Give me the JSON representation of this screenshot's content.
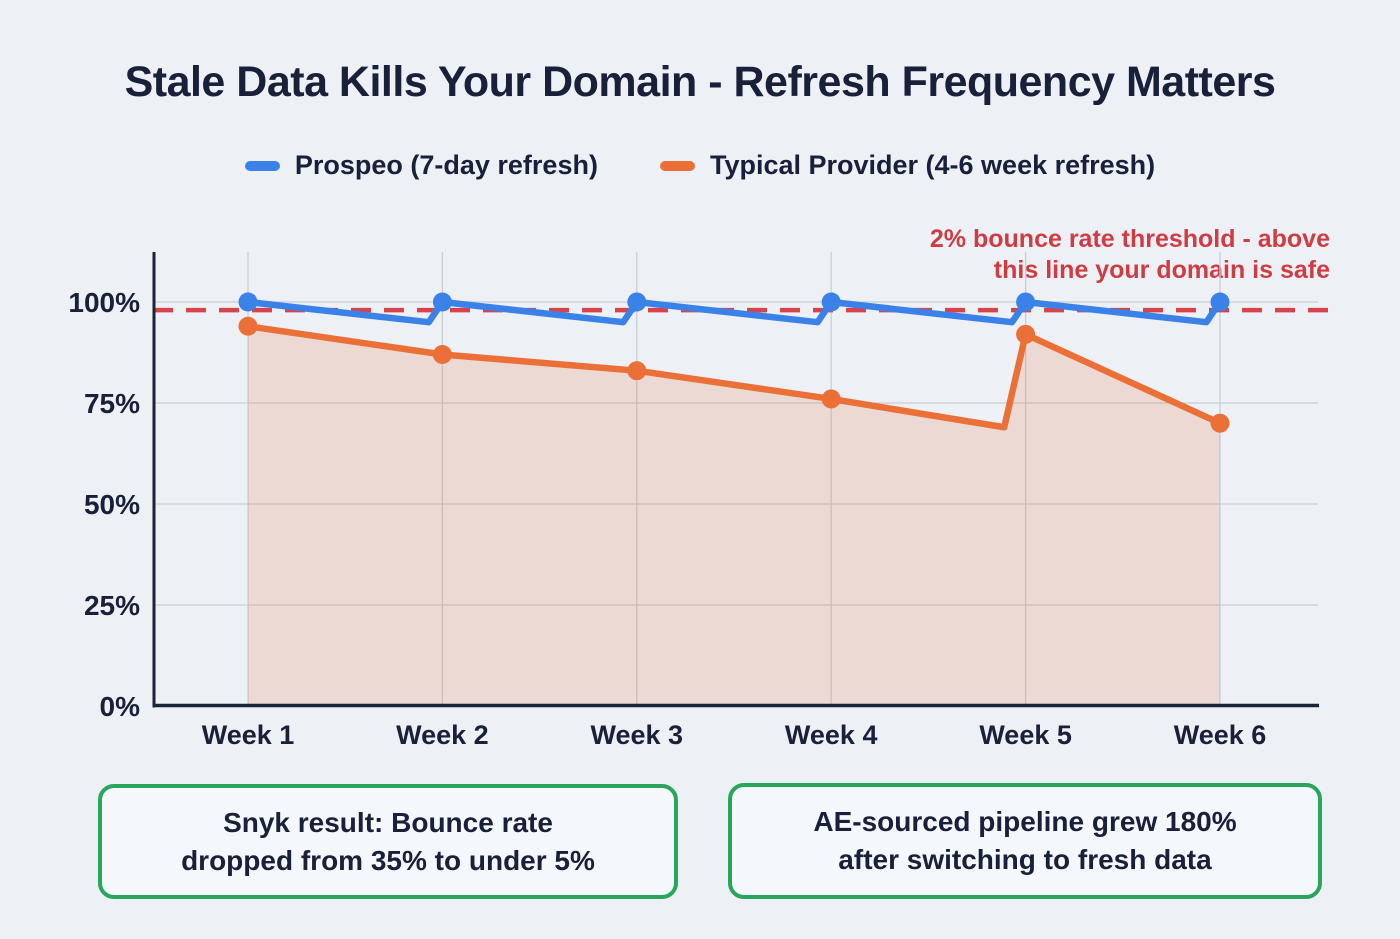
{
  "header": {
    "title": "Stale Data Kills Your Domain - Refresh Frequency Matters"
  },
  "legend": [
    {
      "label": "Prospeo (7-day refresh)",
      "color": "#3b82e8"
    },
    {
      "label": "Typical Provider (4-6 week refresh)",
      "color": "#eb7038"
    }
  ],
  "threshold_note": {
    "line1": "2% bounce rate threshold - above",
    "line2": "this line your domain is safe"
  },
  "callouts": [
    {
      "line1": "Snyk result: Bounce rate",
      "line2": "dropped from 35% to under 5%"
    },
    {
      "line1": "AE-sourced pipeline grew 180%",
      "line2": "after switching to fresh data"
    }
  ],
  "chart_data": {
    "type": "line",
    "title": "Stale Data Kills Your Domain - Refresh Frequency Matters",
    "x_labels": [
      "Week 1",
      "Week 2",
      "Week 3",
      "Week 4",
      "Week 5",
      "Week 6"
    ],
    "y_ticks": [
      0,
      25,
      50,
      75,
      100
    ],
    "y_tick_suffix": "%",
    "ylim": [
      0,
      112
    ],
    "grid": true,
    "legend_position": "top",
    "threshold": {
      "value": 98,
      "color": "#d8434a",
      "style": "dashed",
      "label": "2% bounce rate threshold - above this line your domain is safe"
    },
    "series": [
      {
        "name": "Prospeo (7-day refresh)",
        "color": "#3b82e8",
        "pattern": "sawtooth (refreshes back to 100% every week, dips to ~95% between refreshes)",
        "weekly_values": [
          100,
          100,
          100,
          100,
          100,
          100
        ],
        "dip_value": 95,
        "points": [
          [
            1,
            100
          ],
          [
            1.93,
            95
          ],
          [
            2,
            100
          ],
          [
            2.93,
            95
          ],
          [
            3,
            100
          ],
          [
            3.93,
            95
          ],
          [
            4,
            100
          ],
          [
            4.93,
            95
          ],
          [
            5,
            100
          ],
          [
            5.93,
            95
          ],
          [
            6,
            100
          ]
        ],
        "dots": [
          [
            1,
            100
          ],
          [
            2,
            100
          ],
          [
            3,
            100
          ],
          [
            4,
            100
          ],
          [
            5,
            100
          ],
          [
            6,
            100
          ]
        ]
      },
      {
        "name": "Typical Provider (4-6 week refresh)",
        "color": "#eb7038",
        "area_fill": "rgba(235,112,56,0.18)",
        "pattern": "decays over weeks, one refresh jump just before Week 5, then decays again",
        "weekly_values": [
          94,
          87,
          83,
          76,
          92,
          70
        ],
        "points": [
          [
            1,
            94
          ],
          [
            2,
            87
          ],
          [
            3,
            83
          ],
          [
            4,
            76
          ],
          [
            4.89,
            69
          ],
          [
            5,
            92
          ],
          [
            6,
            70
          ]
        ],
        "dots": [
          [
            1,
            94
          ],
          [
            2,
            87
          ],
          [
            3,
            83
          ],
          [
            4,
            76
          ],
          [
            5,
            92
          ],
          [
            6,
            70
          ]
        ]
      }
    ]
  }
}
